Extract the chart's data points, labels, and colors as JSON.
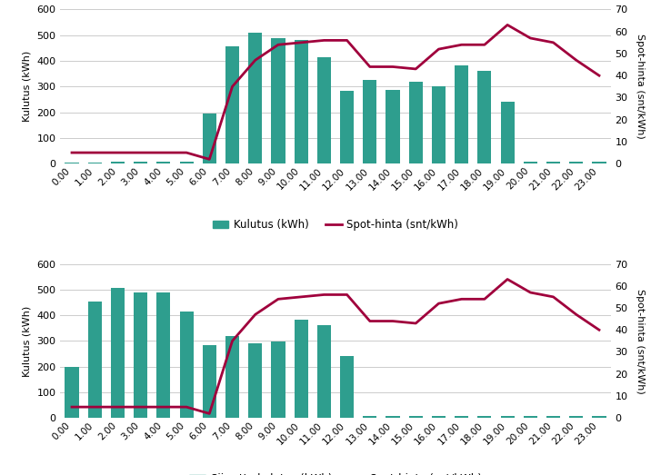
{
  "hours": [
    0,
    1,
    2,
    3,
    4,
    5,
    6,
    7,
    8,
    9,
    10,
    11,
    12,
    13,
    14,
    15,
    16,
    17,
    18,
    19,
    20,
    21,
    22,
    23
  ],
  "hour_labels": [
    "0.00",
    "1.00",
    "2.00",
    "3.00",
    "4.00",
    "5.00",
    "6.00",
    "7.00",
    "8.00",
    "9.00",
    "10.00",
    "11.00",
    "12.00",
    "13.00",
    "14.00",
    "15.00",
    "16.00",
    "17.00",
    "18.00",
    "19.00",
    "20.00",
    "21.00",
    "22.00",
    "23.00"
  ],
  "kulutus": [
    5,
    5,
    8,
    8,
    8,
    6,
    195,
    455,
    508,
    490,
    480,
    415,
    283,
    325,
    287,
    320,
    300,
    383,
    360,
    242,
    8,
    8,
    8,
    8
  ],
  "siirretty": [
    198,
    455,
    507,
    490,
    487,
    413,
    285,
    320,
    290,
    297,
    383,
    362,
    240,
    8,
    8,
    8,
    8,
    8,
    8,
    8,
    8,
    8,
    8,
    8
  ],
  "spot": [
    5,
    5,
    5,
    5,
    5,
    5,
    2,
    35,
    47,
    54,
    55,
    56,
    56,
    44,
    44,
    43,
    52,
    54,
    54,
    63,
    57,
    55,
    47,
    40
  ],
  "bar_color": "#2e9e8e",
  "line_color": "#a0003c",
  "ylim_left": [
    0,
    600
  ],
  "ylim_right": [
    0,
    70
  ],
  "yticks_left": [
    0,
    100,
    200,
    300,
    400,
    500,
    600
  ],
  "yticks_right": [
    0,
    10,
    20,
    30,
    40,
    50,
    60,
    70
  ],
  "ylabel_left": "Kulutus (kWh)",
  "ylabel_right": "Spot-hinta (snt/kWh)",
  "legend1_bar": "Kulutus (kWh)",
  "legend1_line": "Spot-hinta (snt/kWh)",
  "legend2_bar": "Siirretty kulutus (kWh)",
  "legend2_line": "Spot-hinta (snt/kWh)",
  "bg_color": "#ffffff",
  "grid_color": "#cccccc"
}
